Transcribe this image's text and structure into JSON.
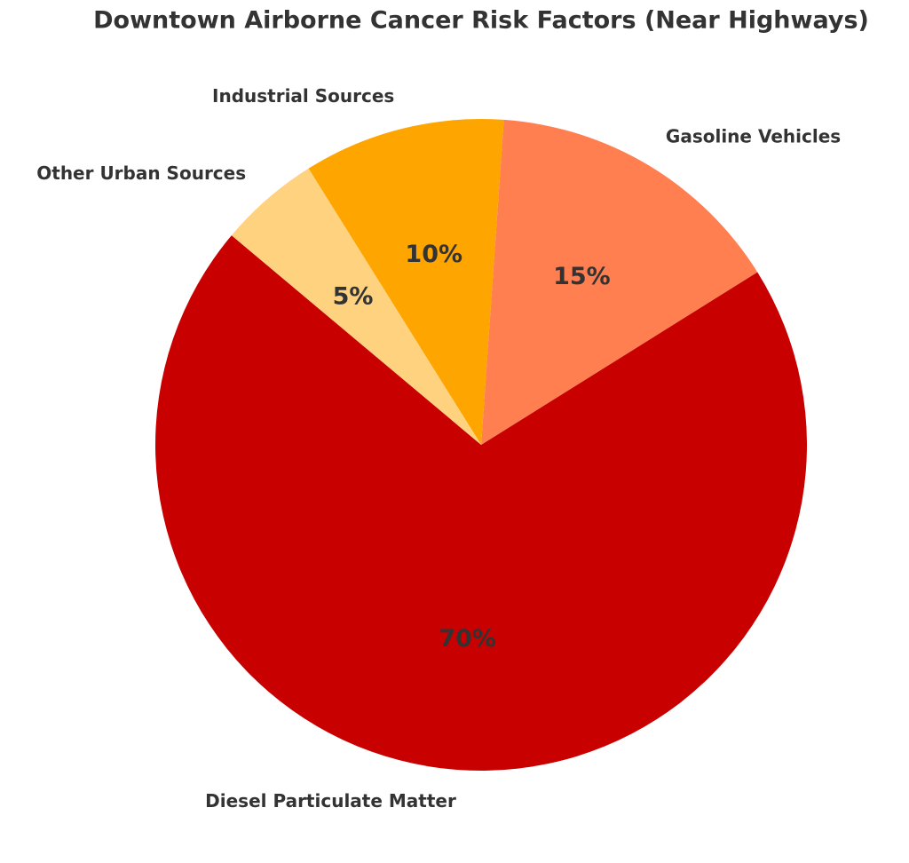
{
  "chart_data": {
    "type": "pie",
    "title": "Downtown Airborne Cancer Risk Factors (Near Highways)",
    "categories": [
      "Diesel Particulate Matter",
      "Gasoline Vehicles",
      "Industrial Sources",
      "Other Urban Sources"
    ],
    "values": [
      70,
      15,
      10,
      5
    ],
    "value_labels": [
      "70%",
      "15%",
      "10%",
      "5%"
    ],
    "colors": [
      "#c80000",
      "#ff7f50",
      "#ffa500",
      "#ffd27f"
    ]
  }
}
